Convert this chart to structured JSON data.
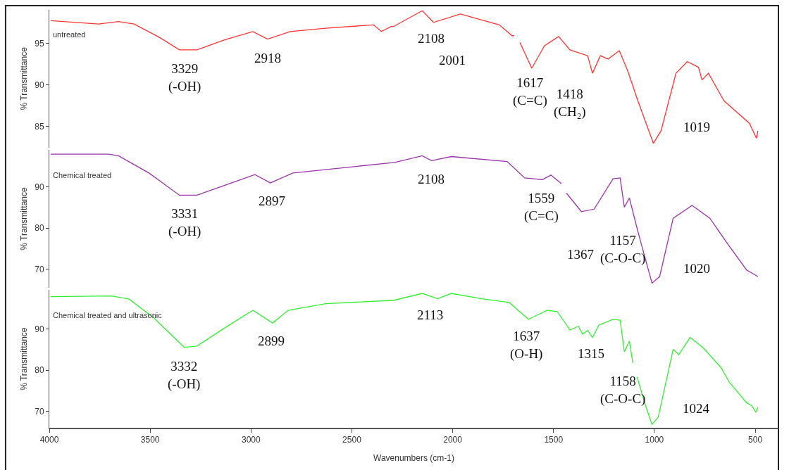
{
  "chart_data": [
    {
      "type": "line",
      "ylabel": "% Transmittance",
      "xlim": [
        4000,
        385
      ],
      "xticks": [
        4000,
        3500,
        3000,
        2500,
        2000,
        1500,
        1000,
        500
      ],
      "ylim": [
        82.5,
        99
      ],
      "yticks": [
        85,
        90,
        95
      ],
      "tick_labels": "y",
      "series": [
        {
          "name": "untreated",
          "color": "#ff3333",
          "x": [
            3993,
            3755,
            3657,
            3580,
            3454,
            3355,
            3268,
            3131,
            2991,
            2918,
            2806,
            2630,
            2392,
            2354,
            2305,
            2294,
            2151,
            2095,
            1962,
            1769,
            1706,
            1695,
            1690,
            1667,
            1608,
            1545,
            1475,
            1419,
            1331,
            1307,
            1268,
            1230,
            1174,
            1131,
            1082,
            1005,
            967,
            893,
            837,
            781,
            764,
            732,
            655,
            529,
            494,
            487
          ],
          "values": [
            97.7,
            97.3,
            97.6,
            97.3,
            95.7,
            94.2,
            94.2,
            95.4,
            96.4,
            95.5,
            96.4,
            96.8,
            97.2,
            96.4,
            97.0,
            97.0,
            98.9,
            97.5,
            98.5,
            97.2,
            95.9,
            95.9,
            null,
            95.1,
            92.0,
            94.7,
            95.8,
            94.2,
            93.5,
            91.4,
            93.5,
            93.1,
            94.1,
            91.6,
            88.1,
            83.0,
            84.5,
            91.4,
            92.8,
            92.1,
            90.6,
            91.4,
            88.1,
            85.4,
            83.6,
            84.5
          ]
        }
      ],
      "annotations": [
        {
          "text": "3329\n(-OH)",
          "x": 3329,
          "y": 94.2
        },
        {
          "text": "2918",
          "x": 2918,
          "y": 95.5
        },
        {
          "text": "2108",
          "x": 2108,
          "y": 97.8
        },
        {
          "text": "2001",
          "x": 2001,
          "y": 98.2
        },
        {
          "text": "1617\n(C=C)",
          "x": 1617,
          "y": 92.5
        },
        {
          "text": "1418\n(CH₂)",
          "x": 1418,
          "y": 94.2
        },
        {
          "text": "1019",
          "x": 1019,
          "y": 83.9
        }
      ]
    },
    {
      "type": "line",
      "ylabel": "% Transmittance",
      "xlim": [
        4000,
        385
      ],
      "xticks": [
        4000,
        3500,
        3000,
        2500,
        2000,
        1500,
        1000,
        500
      ],
      "ylim": [
        65.5,
        99
      ],
      "yticks": [
        70,
        80,
        90
      ],
      "tick_labels": "y",
      "series": [
        {
          "name": "Chemical treated",
          "color": "#9933aa",
          "x": [
            3993,
            3706,
            3657,
            3506,
            3355,
            3268,
            2981,
            2904,
            2792,
            2305,
            2294,
            2151,
            2105,
            2007,
            1730,
            1643,
            1555,
            1513,
            1461,
            1450,
            1436,
            1362,
            1299,
            1205,
            1170,
            1149,
            1124,
            1082,
            1012,
            974,
            907,
            813,
            725,
            645,
            543,
            487
          ],
          "values": [
            98.0,
            98.0,
            97.6,
            93.4,
            88.0,
            88.0,
            93.0,
            91.0,
            93.4,
            95.9,
            95.9,
            97.6,
            96.4,
            97.4,
            96.2,
            92.2,
            91.8,
            92.9,
            90.8,
            null,
            88.5,
            84.0,
            84.6,
            92.0,
            92.2,
            85.1,
            87.3,
            79.2,
            66.6,
            68.2,
            82.4,
            85.5,
            82.4,
            76.7,
            69.8,
            68.2
          ]
        }
      ],
      "annotations": [
        {
          "text": "3331\n(-OH)",
          "x": 3331,
          "y": 88.0
        },
        {
          "text": "2897",
          "x": 2897,
          "y": 91.2
        },
        {
          "text": "2108",
          "x": 2108,
          "y": 96.5
        },
        {
          "text": "1559\n(C=C)",
          "x": 1559,
          "y": 91.8
        },
        {
          "text": "1367",
          "x": 1367,
          "y": 84.3
        },
        {
          "text": "1157\n(C-O-C)",
          "x": 1157,
          "y": 87.8
        },
        {
          "text": "1020",
          "x": 1020,
          "y": 68.0
        }
      ]
    },
    {
      "type": "line",
      "ylabel": "% Transmittance",
      "xlabel": "Wavenumbers (cm-1)",
      "xlim": [
        4000,
        385
      ],
      "xticks": [
        4000,
        3500,
        3000,
        2500,
        2000,
        1500,
        1000,
        500
      ],
      "ylim": [
        66,
        99.5
      ],
      "yticks": [
        70,
        80,
        90
      ],
      "series": [
        {
          "name": "Chemical treated and ultrasonic",
          "color": "#33ee33",
          "x": [
            3993,
            3692,
            3604,
            3482,
            3331,
            3268,
            3131,
            2991,
            2893,
            2816,
            2630,
            2305,
            2294,
            2151,
            2074,
            2007,
            1856,
            1720,
            1625,
            1531,
            1482,
            1419,
            1377,
            1356,
            1331,
            1307,
            1275,
            1205,
            1170,
            1149,
            1124,
            1107,
            1096,
            1086,
            1044,
            1012,
            981,
            907,
            879,
            823,
            757,
            669,
            630,
            543,
            518,
            497,
            487
          ],
          "values": [
            97.9,
            98.1,
            97.3,
            92.7,
            85.6,
            85.9,
            90.3,
            94.6,
            91.5,
            94.6,
            96.2,
            97.0,
            97.0,
            98.7,
            97.4,
            98.7,
            97.4,
            96.5,
            92.4,
            94.6,
            94.3,
            89.8,
            90.7,
            88.8,
            89.7,
            88.0,
            91.0,
            92.4,
            92.2,
            84.5,
            87.1,
            81.8,
            null,
            78.4,
            71.4,
            66.8,
            68.6,
            85.1,
            83.8,
            88.0,
            85.4,
            80.6,
            77.2,
            72.1,
            71.4,
            69.8,
            71.0
          ]
        }
      ],
      "annotations": [
        {
          "text": "3332\n(-OH)",
          "x": 3332,
          "y": 85.6
        },
        {
          "text": "2899",
          "x": 2899,
          "y": 91.7
        },
        {
          "text": "2113",
          "x": 2113,
          "y": 98.1
        },
        {
          "text": "1637\n(O-H)",
          "x": 1637,
          "y": 92.9
        },
        {
          "text": "1315",
          "x": 1315,
          "y": 88.6
        },
        {
          "text": "1158\n(C-O-C)",
          "x": 1158,
          "y": 88.1
        },
        {
          "text": "1024",
          "x": 1024,
          "y": 68.5
        }
      ]
    }
  ]
}
